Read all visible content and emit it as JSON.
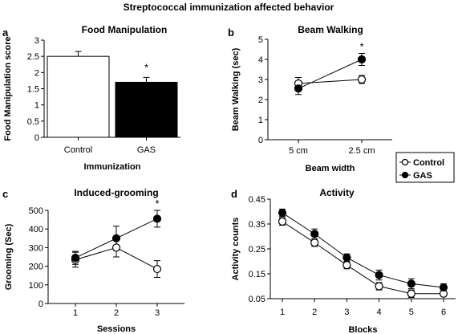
{
  "figure_title": "Streptococcal immunization affected behavior",
  "legend": {
    "entries": [
      {
        "label": "Control",
        "marker": "open-circle"
      },
      {
        "label": "GAS",
        "marker": "filled-circle"
      }
    ]
  },
  "colors": {
    "control": "#ffffff",
    "gas": "#000000",
    "axis": "#000000"
  },
  "chart_data": [
    {
      "panel": "a",
      "type": "bar",
      "title": "Food Manipulation",
      "xlabel": "Immunization",
      "ylabel": "Food Manipulation score",
      "categories": [
        "Control",
        "GAS"
      ],
      "values": [
        2.5,
        1.7
      ],
      "errors": [
        0.15,
        0.15
      ],
      "bar_colors": [
        "#ffffff",
        "#000000"
      ],
      "annotations": [
        {
          "category": "GAS",
          "text": "*"
        }
      ],
      "ylim": [
        0,
        3
      ],
      "yticks": [
        0,
        0.5,
        1,
        1.5,
        2,
        2.5,
        3
      ],
      "ytick_labels": [
        "0",
        "0.5",
        "1",
        "1.5",
        "2",
        "2.5",
        "3"
      ]
    },
    {
      "panel": "b",
      "type": "line",
      "title": "Beam Walking",
      "xlabel": "Beam width",
      "ylabel": "Beam Walking (sec)",
      "categories": [
        "5 cm",
        "2.5 cm"
      ],
      "series": [
        {
          "name": "Control",
          "values": [
            2.8,
            3.0
          ],
          "errors": [
            0.3,
            0.2
          ]
        },
        {
          "name": "GAS",
          "values": [
            2.55,
            4.0
          ],
          "errors": [
            0.3,
            0.3
          ]
        }
      ],
      "annotations": [
        {
          "category": "2.5 cm",
          "text": "*"
        }
      ],
      "ylim": [
        0,
        5
      ],
      "yticks": [
        0,
        1,
        2,
        3,
        4,
        5
      ],
      "ytick_labels": [
        "0",
        "1",
        "2",
        "3",
        "4",
        "5"
      ]
    },
    {
      "panel": "c",
      "type": "line",
      "title": "Induced-grooming",
      "xlabel": "Sessions",
      "ylabel": "Grooming (Sec)",
      "categories": [
        "1",
        "2",
        "3"
      ],
      "series": [
        {
          "name": "Control",
          "values": [
            235,
            300,
            185
          ],
          "errors": [
            40,
            50,
            45
          ]
        },
        {
          "name": "GAS",
          "values": [
            245,
            350,
            455
          ],
          "errors": [
            35,
            65,
            45
          ]
        }
      ],
      "annotations": [
        {
          "category": "3",
          "text": "*"
        }
      ],
      "ylim": [
        0,
        500
      ],
      "yticks": [
        0,
        100,
        200,
        300,
        400,
        500
      ],
      "ytick_labels": [
        "0",
        "100",
        "200",
        "300",
        "400",
        "500"
      ]
    },
    {
      "panel": "d",
      "type": "line",
      "title": "Activity",
      "xlabel": "Blocks",
      "ylabel": "Activity counts",
      "categories": [
        "1",
        "2",
        "3",
        "4",
        "5",
        "6"
      ],
      "series": [
        {
          "name": "Control",
          "values": [
            0.36,
            0.275,
            0.185,
            0.1,
            0.07,
            0.07
          ],
          "errors": [
            0.015,
            0.015,
            0.015,
            0.015,
            0.015,
            0.01
          ]
        },
        {
          "name": "GAS",
          "values": [
            0.395,
            0.31,
            0.215,
            0.145,
            0.11,
            0.095
          ],
          "errors": [
            0.015,
            0.02,
            0.015,
            0.02,
            0.02,
            0.015
          ]
        }
      ],
      "ylim": [
        0.05,
        0.45
      ],
      "yticks": [
        0.05,
        0.15,
        0.25,
        0.35,
        0.45
      ],
      "ytick_labels": [
        "0.05",
        "0.15",
        "0.25",
        "0.35",
        "0.45"
      ]
    }
  ]
}
